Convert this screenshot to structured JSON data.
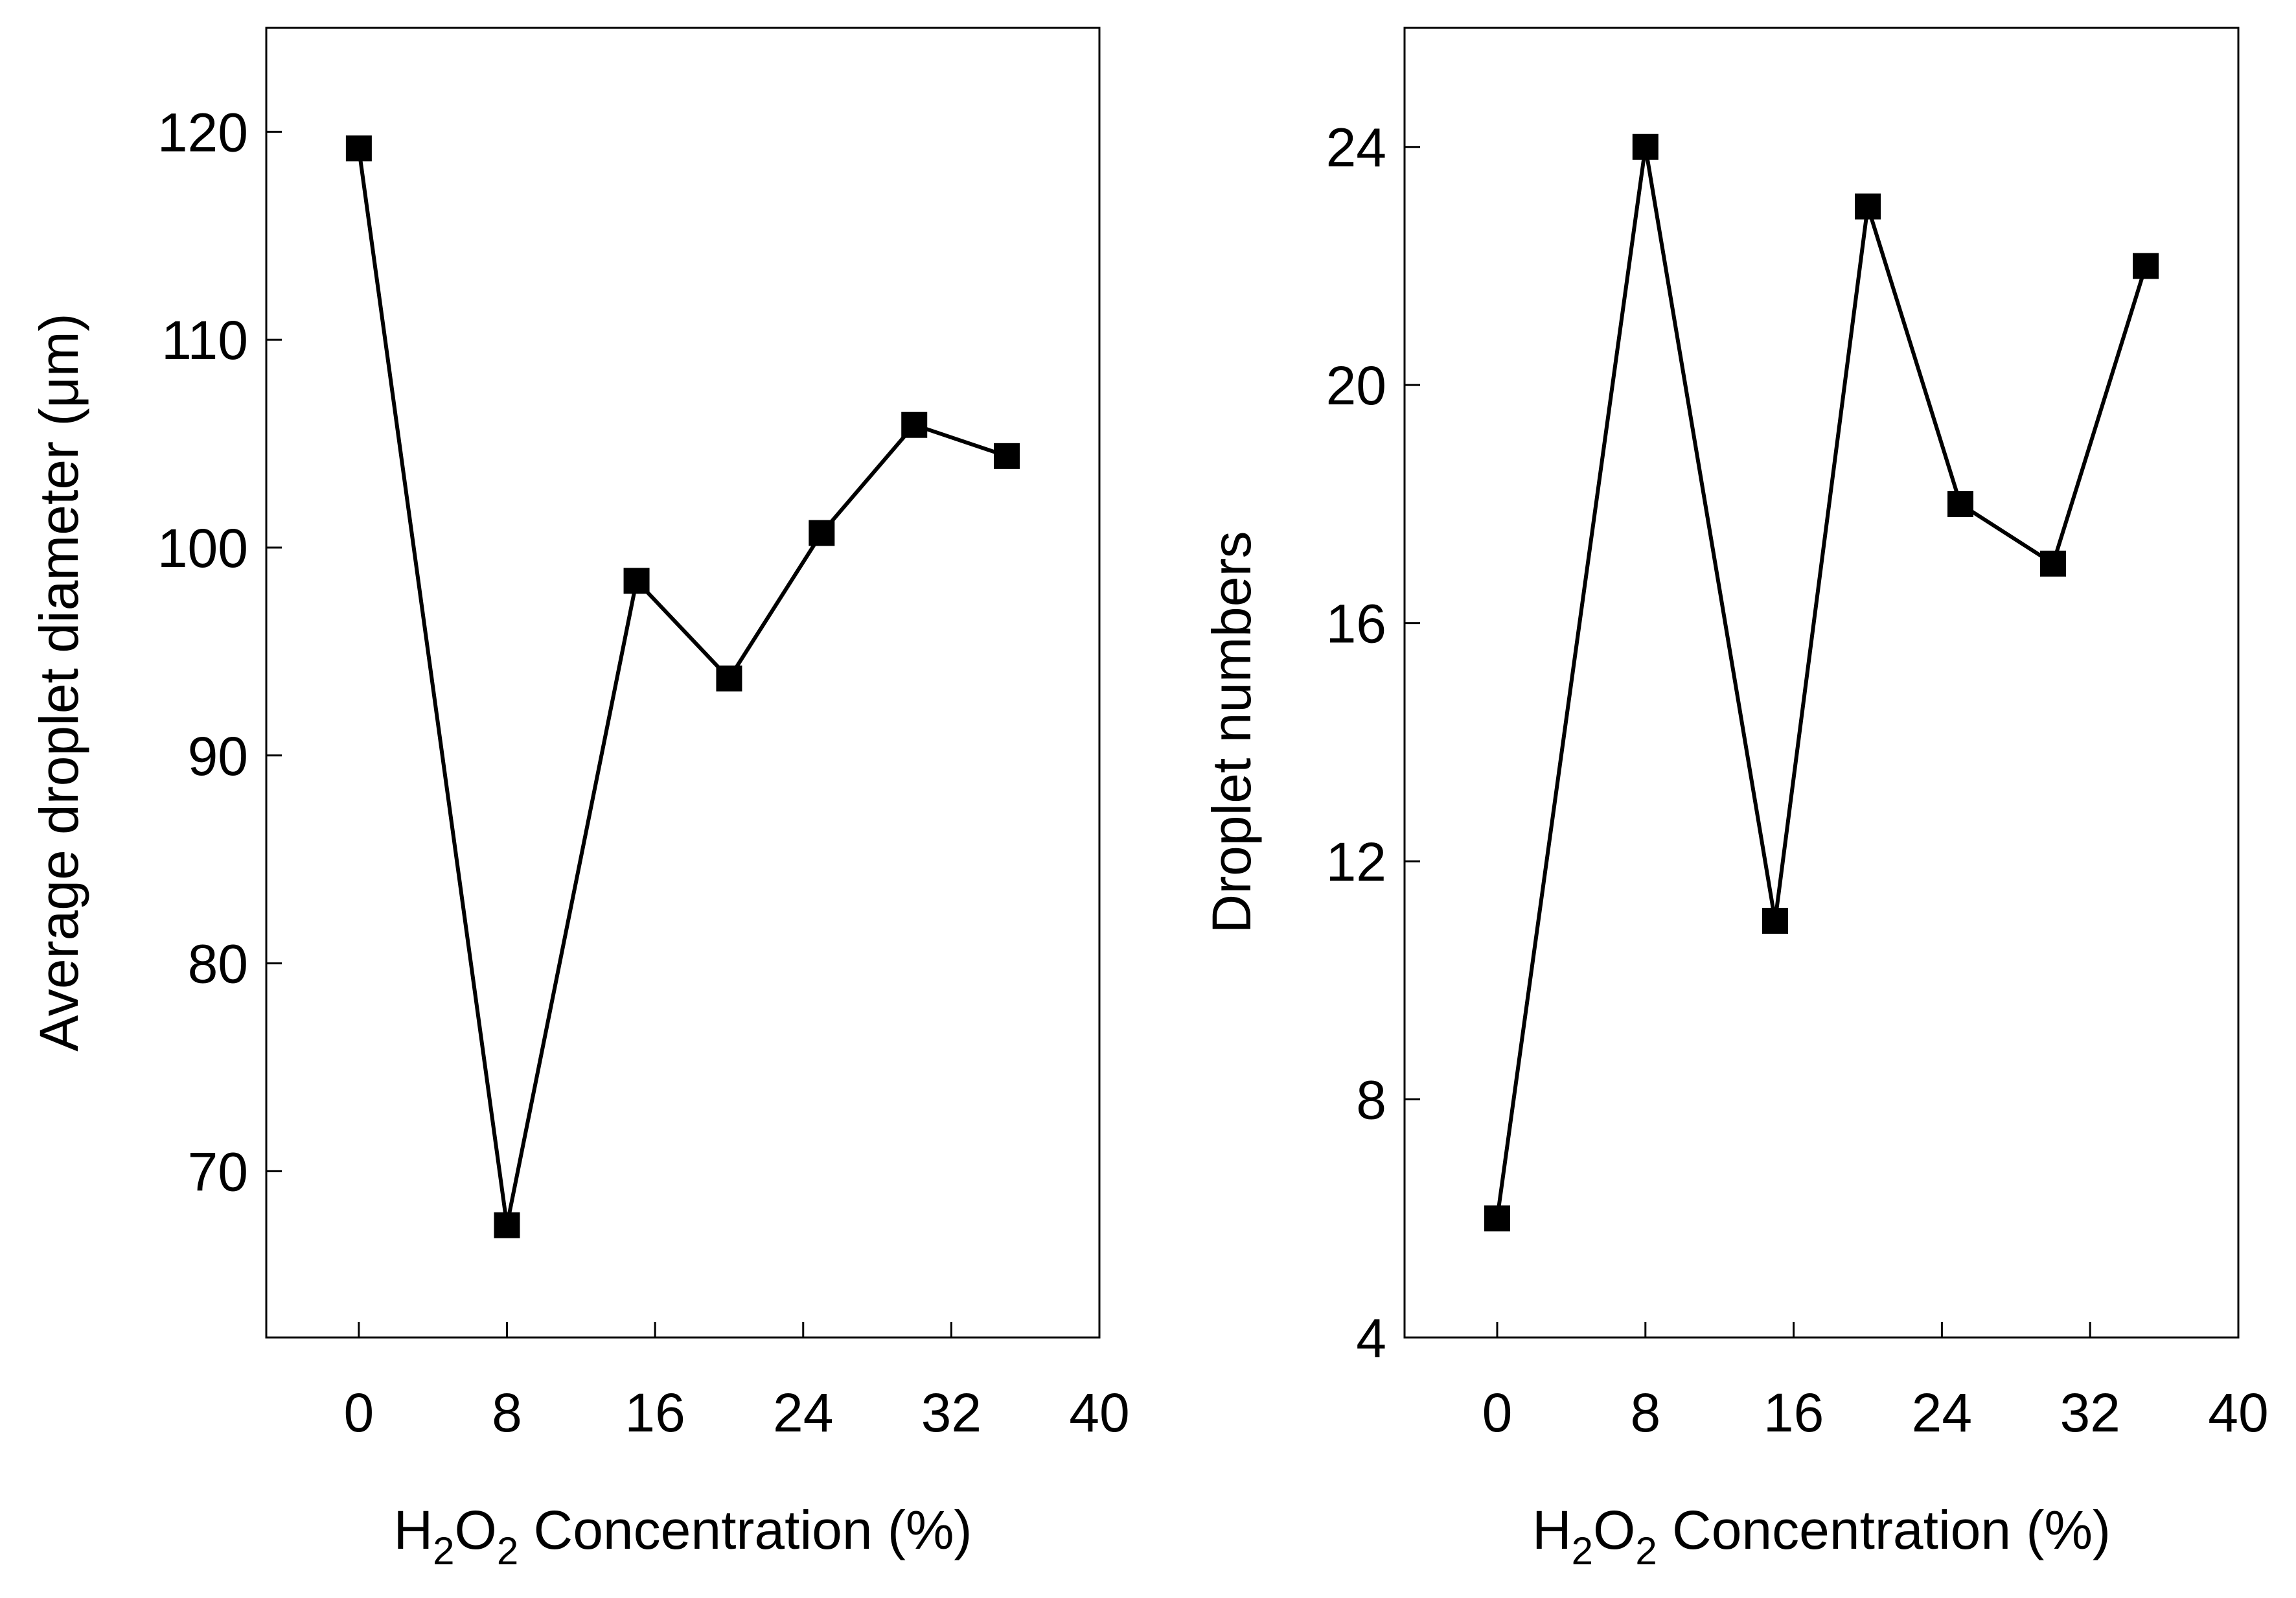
{
  "chart_data": [
    {
      "type": "line",
      "title": "",
      "xlabel": "H2O2 Concentration (%)",
      "xlabel_parts": {
        "a": "H",
        "sub1": "2",
        "b": "O",
        "sub2": "2",
        "c": " Concentration (%)"
      },
      "ylabel": "Average droplet diameter (μm)",
      "xlim": [
        -5,
        40
      ],
      "ylim": [
        62,
        125
      ],
      "xticks": [
        0,
        8,
        16,
        24,
        32,
        40
      ],
      "xtick_labels": [
        "0",
        "8",
        "16",
        "24",
        "32",
        "40"
      ],
      "yticks": [
        70,
        80,
        90,
        100,
        110,
        120
      ],
      "ytick_labels": [
        "70",
        "80",
        "90",
        "100",
        "110",
        "120"
      ],
      "grid": false,
      "marker": "square",
      "series": [
        {
          "name": "Average droplet diameter",
          "x": [
            0,
            8,
            15,
            20,
            25,
            30,
            35
          ],
          "y": [
            119.2,
            67.4,
            98.4,
            93.7,
            100.7,
            105.9,
            104.4
          ]
        }
      ]
    },
    {
      "type": "line",
      "title": "",
      "xlabel": "H2O2 Concentration (%)",
      "xlabel_parts": {
        "a": "H",
        "sub1": "2",
        "b": "O",
        "sub2": "2",
        "c": " Concentration (%)"
      },
      "ylabel": "Droplet numbers",
      "xlim": [
        -5,
        40
      ],
      "ylim": [
        4,
        26
      ],
      "xticks": [
        0,
        8,
        16,
        24,
        32,
        40
      ],
      "xtick_labels": [
        "0",
        "8",
        "16",
        "24",
        "32",
        "40"
      ],
      "yticks": [
        4,
        8,
        12,
        16,
        20,
        24
      ],
      "ytick_labels": [
        "4",
        "8",
        "12",
        "16",
        "20",
        "24"
      ],
      "grid": false,
      "marker": "square",
      "series": [
        {
          "name": "Droplet numbers",
          "x": [
            0,
            8,
            15,
            20,
            25,
            30,
            35
          ],
          "y": [
            6,
            24,
            11,
            23,
            18,
            17,
            22
          ]
        }
      ]
    }
  ]
}
